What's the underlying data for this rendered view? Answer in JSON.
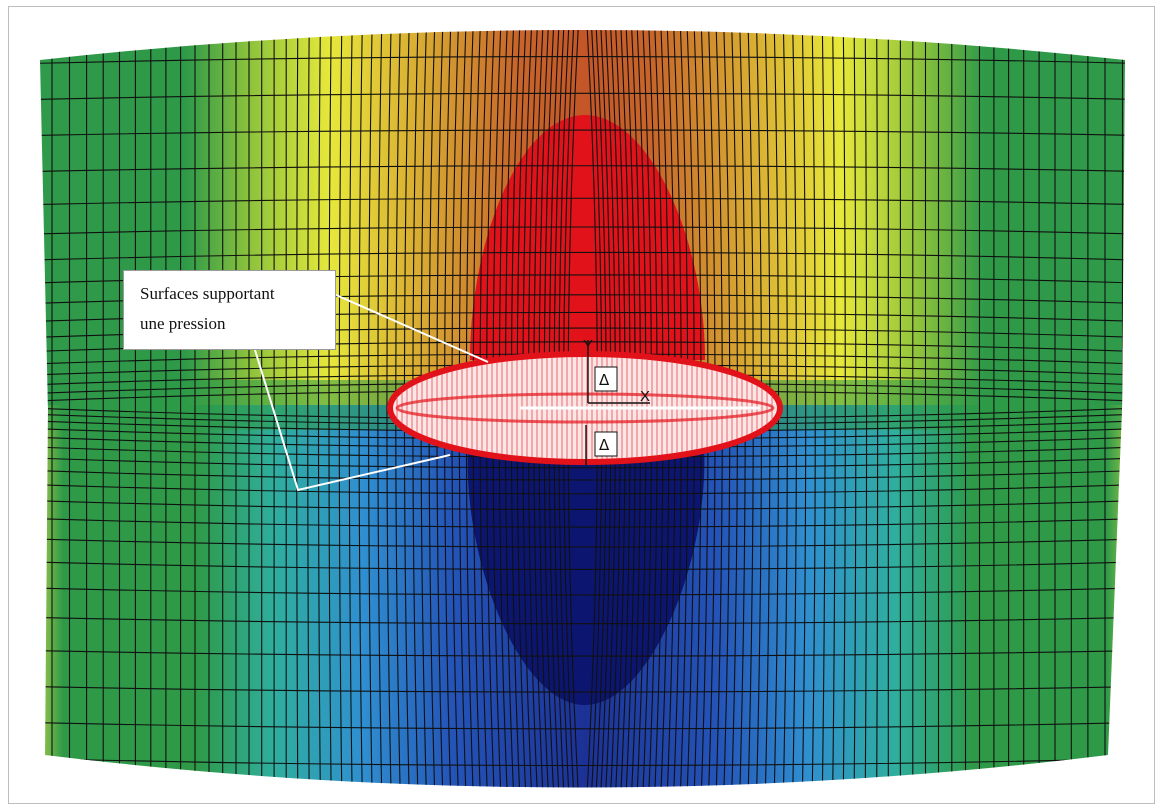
{
  "annotation": {
    "line1": "Surfaces supportant",
    "line2": "une pression"
  },
  "axes": {
    "vertical": "Y",
    "horizontal": "X"
  },
  "dimensions": {
    "upper": "Δ",
    "lower": "Δ"
  },
  "colors": {
    "red_zone": "#e2121a",
    "blue_zone": "#0c1670",
    "green": "#2e9a48",
    "mesh_line": "#101010",
    "ellipse_fill": "#fbe6e6",
    "leader": "#ffffff"
  }
}
